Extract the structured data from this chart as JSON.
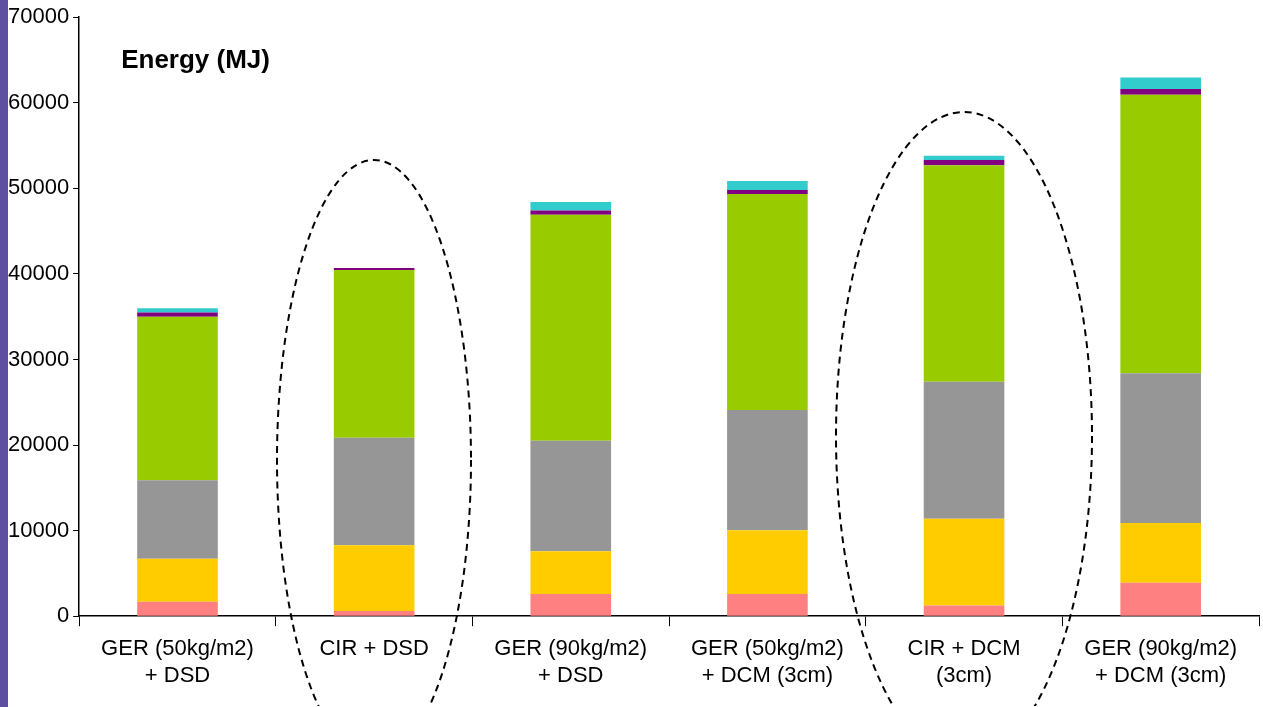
{
  "chart_data": {
    "type": "bar",
    "stacked": true,
    "title": "Energy (MJ)",
    "categories": [
      "GER (50kg/m2)\n+ DSD",
      "CIR + DSD",
      "GER (90kg/m2)\n+ DSD",
      "GER (50kg/m2)\n+ DCM (3cm)",
      "CIR + DCM\n(3cm)",
      "GER (90kg/m2)\n+ DCM (3cm)"
    ],
    "series": [
      {
        "color": "#ff8080",
        "values": [
          1700,
          600,
          2600,
          2600,
          1250,
          3900
        ]
      },
      {
        "color": "#ffcc00",
        "values": [
          5000,
          7700,
          5000,
          7450,
          10150,
          7000
        ]
      },
      {
        "color": "#969696",
        "values": [
          9200,
          12550,
          12900,
          14050,
          16000,
          17500
        ]
      },
      {
        "color": "#99cc00",
        "values": [
          19100,
          19600,
          26400,
          25250,
          25300,
          32550
        ]
      },
      {
        "color": "#800080",
        "values": [
          500,
          250,
          500,
          450,
          600,
          650
        ]
      },
      {
        "color": "#33cccc",
        "values": [
          500,
          0,
          1000,
          1050,
          500,
          1350
        ]
      }
    ],
    "ylim": [
      0,
      70000
    ],
    "yticks": [
      0,
      10000,
      20000,
      30000,
      40000,
      50000,
      60000,
      70000
    ],
    "grid": false,
    "legend": false
  }
}
